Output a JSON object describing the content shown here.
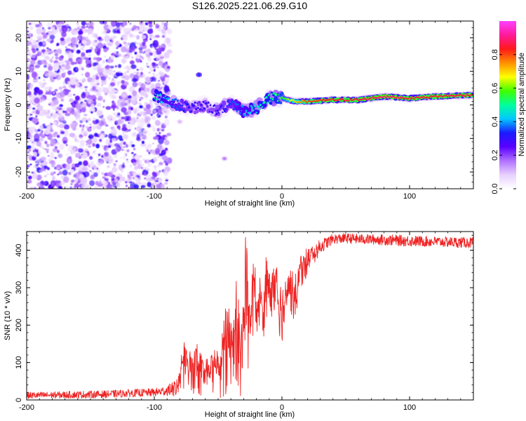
{
  "title": "S126.2025.221.06.29.G10",
  "chart_data": [
    {
      "type": "heatmap",
      "title": "S126.2025.221.06.29.G10",
      "xlabel": "Height of straight line (km)",
      "ylabel": "Frequency (Hz)",
      "xlim": [
        -200,
        150
      ],
      "ylim": [
        -25,
        25
      ],
      "xticks": [
        -200,
        -100,
        0,
        100
      ],
      "yticks": [
        -20,
        -10,
        0,
        10,
        20
      ],
      "colorbar": {
        "label": "Normalized spectral amplitude",
        "range": [
          0,
          1
        ],
        "ticks": [
          0.0,
          0.2,
          0.4,
          0.6,
          0.8
        ],
        "colors": [
          "#ffffff",
          "#e8d0ff",
          "#b070ff",
          "#5a00ff",
          "#1a1aff",
          "#00c8ff",
          "#00ff9c",
          "#40ff00",
          "#ffff00",
          "#ff9000",
          "#ff1a1a",
          "#ff1a9a",
          "#ff40ff"
        ]
      },
      "ridge": {
        "x": [
          -100,
          -90,
          -80,
          -70,
          -60,
          -50,
          -40,
          -30,
          -20,
          -10,
          0,
          10,
          20,
          40,
          60,
          80,
          100,
          120,
          150
        ],
        "y": [
          3,
          1,
          0,
          -1,
          0,
          -2,
          1,
          -2,
          -1,
          2,
          2,
          1,
          1,
          1.5,
          1.5,
          2.5,
          2,
          2.5,
          3
        ],
        "amplitude": [
          0.5,
          0.4,
          0.35,
          0.3,
          0.3,
          0.3,
          0.35,
          0.4,
          0.45,
          0.5,
          0.55,
          0.7,
          0.8,
          0.85,
          0.85,
          0.9,
          0.85,
          0.85,
          0.85
        ]
      },
      "features": [
        {
          "x": -65,
          "y": 9,
          "amplitude": 0.35
        },
        {
          "x": -45,
          "y": -16,
          "amplitude": 0.15
        },
        {
          "x": -80,
          "y": -5,
          "amplitude": 0.1
        }
      ]
    },
    {
      "type": "line",
      "xlabel": "Height of straight line (km)",
      "ylabel": "SNR (10 * v/v)",
      "xlim": [
        -200,
        150
      ],
      "ylim": [
        0,
        450
      ],
      "xticks": [
        -200,
        -100,
        0,
        100
      ],
      "yticks": [
        0,
        100,
        200,
        300,
        400
      ],
      "color": "#ee2222",
      "series": [
        {
          "name": "SNR",
          "x": [
            -200,
            -180,
            -160,
            -140,
            -120,
            -100,
            -90,
            -82,
            -78,
            -72,
            -66,
            -60,
            -54,
            -48,
            -44,
            -40,
            -36,
            -32,
            -28,
            -25,
            -22,
            -20,
            -18,
            -15,
            -12,
            -9,
            -6,
            -3,
            0,
            5,
            10,
            15,
            20,
            25,
            30,
            40,
            50,
            60,
            80,
            100,
            120,
            150
          ],
          "y": [
            12,
            13,
            14,
            15,
            18,
            20,
            25,
            35,
            120,
            80,
            110,
            60,
            100,
            90,
            200,
            160,
            280,
            140,
            420,
            150,
            360,
            200,
            280,
            230,
            330,
            280,
            330,
            290,
            200,
            310,
            270,
            360,
            370,
            390,
            410,
            430,
            432,
            430,
            428,
            425,
            423,
            420
          ],
          "envelope_min": [
            2,
            2,
            2,
            2,
            3,
            4,
            5,
            6,
            10,
            8,
            10,
            6,
            8,
            4,
            10,
            8,
            20,
            10,
            100,
            60,
            200,
            90,
            150,
            150,
            200,
            170,
            230,
            180,
            150,
            250,
            200,
            300,
            330,
            360,
            390,
            410,
            415,
            415,
            410,
            405,
            405,
            400
          ],
          "envelope_max": [
            22,
            22,
            24,
            24,
            26,
            28,
            35,
            60,
            160,
            140,
            150,
            110,
            140,
            130,
            290,
            220,
            300,
            200,
            440,
            250,
            400,
            310,
            350,
            300,
            400,
            330,
            380,
            350,
            310,
            370,
            330,
            400,
            410,
            420,
            432,
            440,
            445,
            445,
            442,
            438,
            436,
            432
          ]
        }
      ]
    }
  ]
}
